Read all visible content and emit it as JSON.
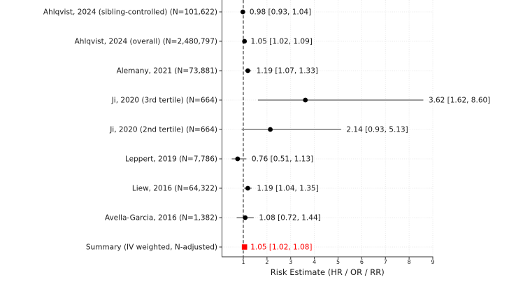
{
  "figure": {
    "background": "#ffffff"
  },
  "chart_data": {
    "type": "scatter",
    "subtype": "forest-plot",
    "title": "",
    "xlabel": "Risk Estimate (HR / OR / RR)",
    "ylabel": "",
    "xlim": [
      0.1,
      9.0
    ],
    "x_ticks": [
      1,
      2,
      3,
      4,
      5,
      6,
      7,
      8,
      9
    ],
    "grid": true,
    "legend_position": "none",
    "reference_line_x": 1,
    "rows": [
      {
        "label": "Ahlqvist, 2024 (sibling-controlled) (N=101,622)",
        "estimate": 0.98,
        "ci_low": 0.93,
        "ci_high": 1.04,
        "annotation": "0.98 [0.93, 1.04]",
        "is_summary": false
      },
      {
        "label": "Ahlqvist, 2024 (overall) (N=2,480,797)",
        "estimate": 1.05,
        "ci_low": 1.02,
        "ci_high": 1.09,
        "annotation": "1.05 [1.02, 1.09]",
        "is_summary": false
      },
      {
        "label": "Alemany, 2021 (N=73,881)",
        "estimate": 1.19,
        "ci_low": 1.07,
        "ci_high": 1.33,
        "annotation": "1.19 [1.07, 1.33]",
        "is_summary": false
      },
      {
        "label": "Ji, 2020 (3rd tertile) (N=664)",
        "estimate": 3.62,
        "ci_low": 1.62,
        "ci_high": 8.6,
        "annotation": "3.62 [1.62, 8.60]",
        "is_summary": false
      },
      {
        "label": "Ji, 2020 (2nd tertile) (N=664)",
        "estimate": 2.14,
        "ci_low": 0.93,
        "ci_high": 5.13,
        "annotation": "2.14 [0.93, 5.13]",
        "is_summary": false
      },
      {
        "label": "Leppert, 2019 (N=7,786)",
        "estimate": 0.76,
        "ci_low": 0.51,
        "ci_high": 1.13,
        "annotation": "0.76 [0.51, 1.13]",
        "is_summary": false
      },
      {
        "label": "Liew, 2016 (N=64,322)",
        "estimate": 1.19,
        "ci_low": 1.04,
        "ci_high": 1.35,
        "annotation": "1.19 [1.04, 1.35]",
        "is_summary": false
      },
      {
        "label": "Avella-Garcia, 2016 (N=1,382)",
        "estimate": 1.08,
        "ci_low": 0.72,
        "ci_high": 1.44,
        "annotation": "1.08 [0.72, 1.44]",
        "is_summary": false
      },
      {
        "label": "Summary (IV weighted, N-adjusted)",
        "estimate": 1.05,
        "ci_low": 1.02,
        "ci_high": 1.08,
        "annotation": "1.05 [1.02, 1.08]",
        "is_summary": true
      }
    ],
    "colors": {
      "point": "#000000",
      "ci_line": "#8c8c8c",
      "summary": "#ff0000",
      "reference_line": "#4d4d4d",
      "grid": "#e2e2e2",
      "text": "#1a1a1a",
      "spine": "#333333"
    }
  }
}
